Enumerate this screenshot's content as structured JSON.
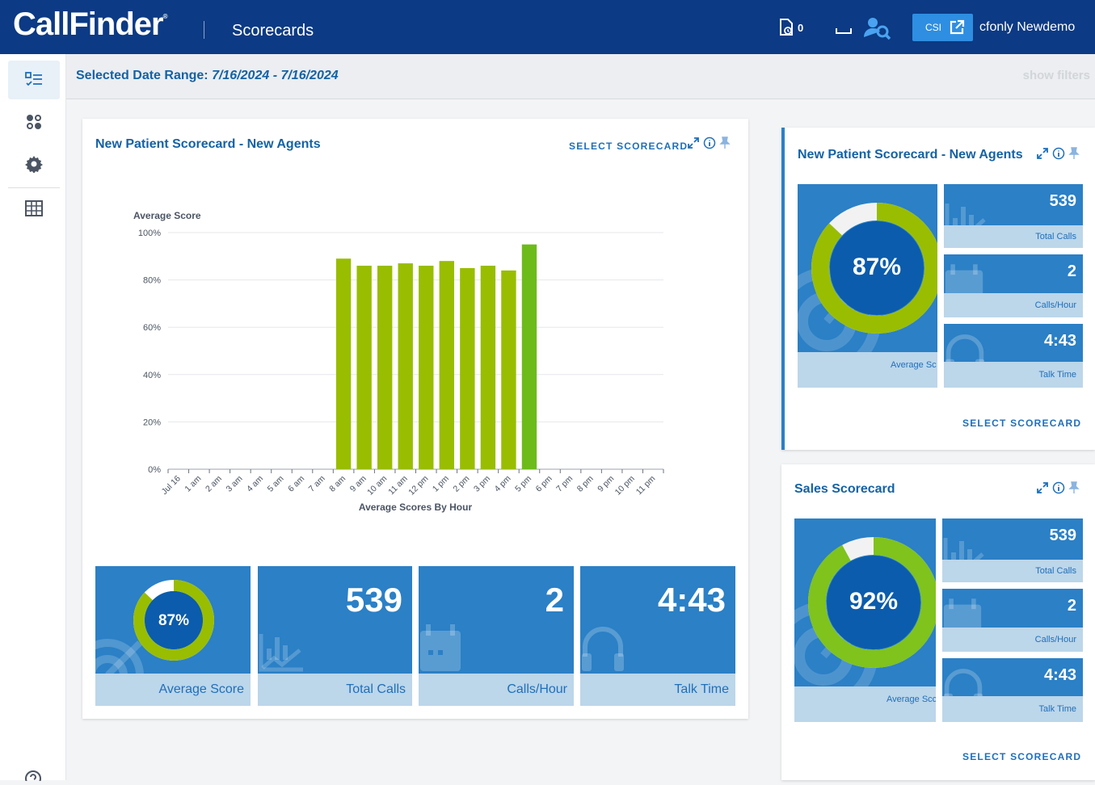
{
  "header": {
    "logo": "CallFinder",
    "logo_mark": "®",
    "title": "Scorecards",
    "notification_count": "0",
    "csi_label": "CSI",
    "user_name": "cfonly Newdemo"
  },
  "filterbar": {
    "range_label": "Selected Date Range:",
    "range_value": "7/16/2024 - 7/16/2024",
    "show_filters": "show filters"
  },
  "main_card": {
    "title": "New Patient Scorecard - New Agents",
    "select_label": "SELECT SCORECARD",
    "tiles": [
      {
        "value": "87%",
        "label": "Average Score"
      },
      {
        "value": "539",
        "label": "Total Calls"
      },
      {
        "value": "2",
        "label": "Calls/Hour"
      },
      {
        "value": "4:43",
        "label": "Talk Time"
      }
    ]
  },
  "side_cards": [
    {
      "title": "New Patient Scorecard - New Agents",
      "score": "87%",
      "score_label": "Average Sc",
      "total_calls": "539",
      "total_calls_label": "Total Calls",
      "calls_hour": "2",
      "calls_hour_label": "Calls/Hour",
      "talk_time": "4:43",
      "talk_time_label": "Talk Time",
      "select_label": "SELECT SCORECARD"
    },
    {
      "title": "Sales Scorecard",
      "score": "92%",
      "score_label": "Average Scc",
      "total_calls": "539",
      "total_calls_label": "Total Calls",
      "calls_hour": "2",
      "calls_hour_label": "Calls/Hour",
      "talk_time": "4:43",
      "talk_time_label": "Talk Time",
      "select_label": "SELECT SCORECARD"
    }
  ],
  "colors": {
    "brand_navy": "#0c3a84",
    "accent_blue": "#1462a5",
    "bar_green": "#99bd00",
    "bar_highlight": "#6dbb1a",
    "tile_blue": "#2b80c6"
  },
  "chart_data": {
    "type": "bar",
    "ylabel": "Average Score",
    "xlabel": "Average Scores By Hour",
    "ylim": [
      0,
      100
    ],
    "yticks": [
      "0%",
      "20%",
      "40%",
      "60%",
      "80%",
      "100%"
    ],
    "categories": [
      "Jul 16",
      "1 am",
      "2 am",
      "3 am",
      "4 am",
      "5 am",
      "6 am",
      "7 am",
      "8 am",
      "9 am",
      "10 am",
      "11 am",
      "12 pm",
      "1 pm",
      "2 pm",
      "3 pm",
      "4 pm",
      "5 pm",
      "6 pm",
      "7 pm",
      "8 pm",
      "9 pm",
      "10 pm",
      "11 pm"
    ],
    "values": [
      null,
      null,
      null,
      null,
      null,
      null,
      null,
      null,
      89,
      86,
      86,
      87,
      86,
      88,
      85,
      86,
      84,
      95,
      null,
      null,
      null,
      null,
      null,
      null
    ]
  }
}
